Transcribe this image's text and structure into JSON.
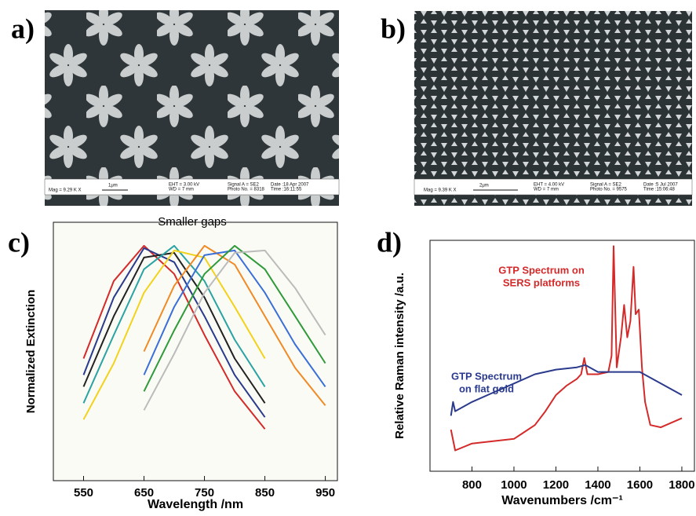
{
  "sem_images": [
    {
      "panel_label": "a)",
      "info": [
        "Mag =  9.29 K X",
        "1μm",
        "EHT = 3.00 kV",
        "WD =  7 mm",
        "Signal A = SE2",
        "Photo No. = 8318",
        "Date :18 Apr 2007",
        "Time :16:11:55"
      ]
    },
    {
      "panel_label": "b)",
      "info": [
        "Mag =  9.39 K X",
        "2μm",
        "EHT = 4.00 kV",
        "WD =  7 mm",
        "Signal A = SE2",
        "Photo No. = 9575",
        "Date :5 Jul 2007",
        "Time :15:06:48"
      ]
    }
  ],
  "chart_data": [
    {
      "type": "line",
      "panel_label": "c)",
      "xlabel": "Wavelength /nm",
      "ylabel": "Normalized Extinction",
      "annotation": "Smaller gaps",
      "xlim": [
        500,
        970
      ],
      "xticks": [
        550,
        650,
        750,
        850,
        950
      ],
      "ylim": [
        0,
        1.1
      ],
      "series": [
        {
          "color": "#d42a2a",
          "x": [
            550,
            600,
            650,
            700,
            750,
            800,
            850
          ],
          "values": [
            0.52,
            0.85,
            1.0,
            0.88,
            0.62,
            0.38,
            0.22
          ]
        },
        {
          "color": "#2a3a8c",
          "x": [
            550,
            600,
            650,
            700,
            750,
            800,
            850
          ],
          "values": [
            0.45,
            0.78,
            0.99,
            0.93,
            0.7,
            0.45,
            0.27
          ]
        },
        {
          "color": "#222222",
          "x": [
            550,
            600,
            650,
            700,
            750,
            800,
            850
          ],
          "values": [
            0.4,
            0.7,
            0.95,
            0.97,
            0.78,
            0.52,
            0.33
          ]
        },
        {
          "color": "#2aa3a3",
          "x": [
            550,
            600,
            650,
            700,
            750,
            800,
            850
          ],
          "values": [
            0.33,
            0.62,
            0.9,
            1.0,
            0.85,
            0.6,
            0.4
          ]
        },
        {
          "color": "#f2d21a",
          "x": [
            550,
            600,
            650,
            700,
            750,
            800,
            850
          ],
          "values": [
            0.26,
            0.5,
            0.8,
            0.98,
            0.95,
            0.74,
            0.52
          ]
        },
        {
          "color": "#f08a24",
          "x": [
            650,
            700,
            750,
            800,
            850,
            900,
            950
          ],
          "values": [
            0.55,
            0.83,
            1.0,
            0.92,
            0.7,
            0.48,
            0.32
          ]
        },
        {
          "color": "#3a6fd8",
          "x": [
            650,
            700,
            750,
            800,
            850,
            900,
            950
          ],
          "values": [
            0.45,
            0.74,
            0.96,
            0.98,
            0.8,
            0.58,
            0.4
          ]
        },
        {
          "color": "#2f9a3a",
          "x": [
            650,
            700,
            750,
            800,
            850,
            900,
            950
          ],
          "values": [
            0.38,
            0.64,
            0.88,
            1.0,
            0.9,
            0.7,
            0.5
          ]
        },
        {
          "color": "#bbbbbb",
          "x": [
            650,
            700,
            750,
            800,
            850,
            900,
            950
          ],
          "values": [
            0.3,
            0.54,
            0.8,
            0.97,
            0.98,
            0.82,
            0.62
          ]
        }
      ]
    },
    {
      "type": "line",
      "panel_label": "d)",
      "xlabel": "Wavenumbers /cm⁻¹",
      "ylabel": "Relative Raman intensity /a.u.",
      "xlim": [
        600,
        1860
      ],
      "xticks": [
        800,
        1000,
        1200,
        1400,
        1600,
        1800
      ],
      "ylim": [
        0,
        1
      ],
      "annotations": [
        {
          "lines": [
            "GTP Spectrum on",
            "SERS platforms"
          ],
          "color": "#d42a2a"
        },
        {
          "lines": [
            "GTP Spectrum",
            "on flat gold"
          ],
          "color": "#2a3a8c"
        }
      ],
      "series": [
        {
          "color": "#d42a2a",
          "x": [
            700,
            720,
            800,
            900,
            1000,
            1050,
            1100,
            1150,
            1200,
            1250,
            1300,
            1320,
            1335,
            1350,
            1400,
            1450,
            1465,
            1475,
            1490,
            1510,
            1525,
            1540,
            1555,
            1570,
            1580,
            1595,
            1610,
            1625,
            1650,
            1700,
            1800
          ],
          "values": [
            0.18,
            0.09,
            0.12,
            0.13,
            0.14,
            0.17,
            0.2,
            0.26,
            0.33,
            0.37,
            0.4,
            0.42,
            0.49,
            0.42,
            0.42,
            0.43,
            0.5,
            0.975,
            0.45,
            0.58,
            0.72,
            0.58,
            0.65,
            0.885,
            0.68,
            0.7,
            0.45,
            0.3,
            0.2,
            0.19,
            0.23
          ]
        },
        {
          "color": "#2a3a8c",
          "x": [
            700,
            710,
            720,
            800,
            900,
            1000,
            1100,
            1200,
            1300,
            1340,
            1400,
            1500,
            1600,
            1700,
            1800
          ],
          "values": [
            0.24,
            0.3,
            0.26,
            0.3,
            0.34,
            0.38,
            0.42,
            0.44,
            0.45,
            0.46,
            0.43,
            0.43,
            0.43,
            0.38,
            0.33
          ]
        }
      ]
    }
  ]
}
